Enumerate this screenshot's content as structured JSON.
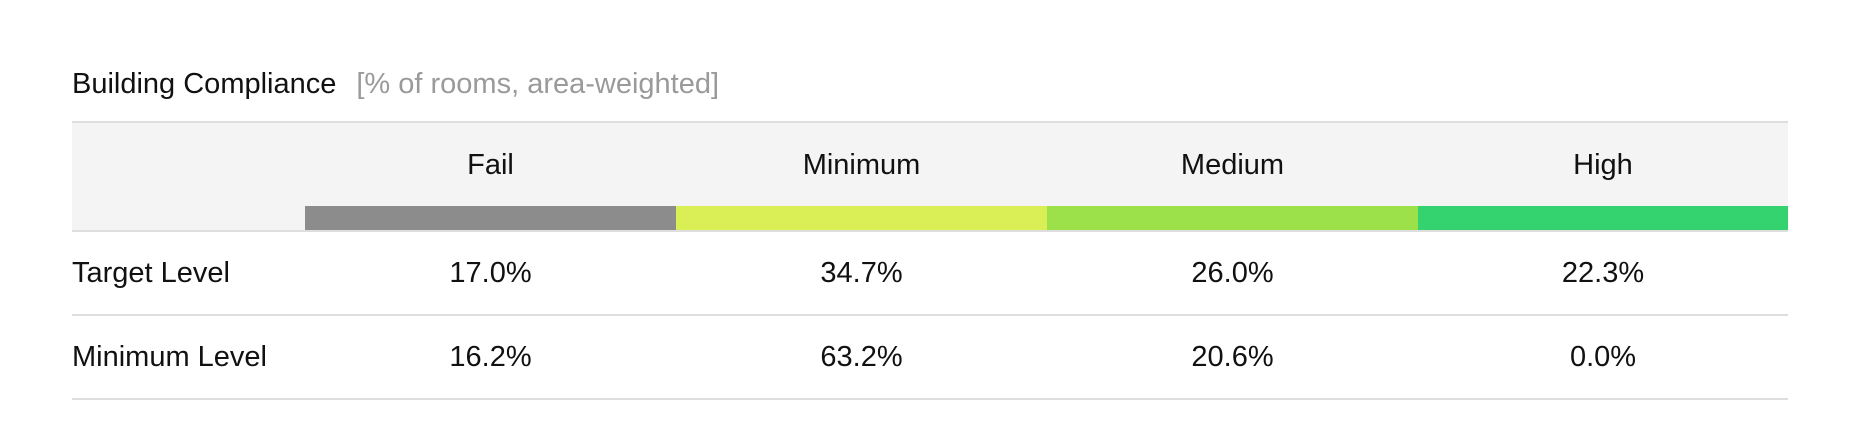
{
  "title": "Building Compliance",
  "subtitle": "[% of rooms, area-weighted]",
  "columns": [
    {
      "label": "Fail",
      "color": "#8c8c8c"
    },
    {
      "label": "Minimum",
      "color": "#d9ef55"
    },
    {
      "label": "Medium",
      "color": "#9ce04a"
    },
    {
      "label": "High",
      "color": "#35d370"
    }
  ],
  "rows": [
    {
      "label": "Target Level",
      "values": [
        "17.0%",
        "34.7%",
        "26.0%",
        "22.3%"
      ]
    },
    {
      "label": "Minimum Level",
      "values": [
        "16.2%",
        "63.2%",
        "20.6%",
        "0.0%"
      ]
    }
  ]
}
